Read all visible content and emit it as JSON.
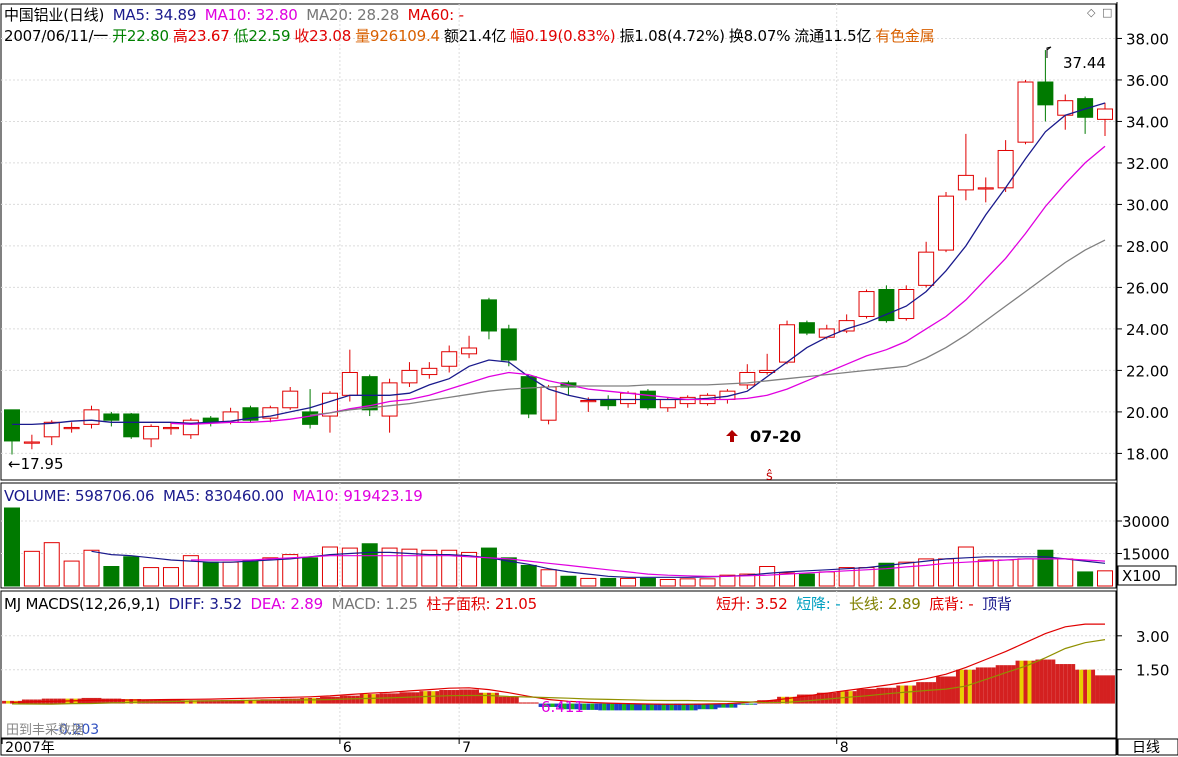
{
  "window": {
    "title": "中国铝业(日线)",
    "period_button": "日线",
    "watermark": "田到丰采数据",
    "icons": [
      "restore-icon",
      "close-icon"
    ]
  },
  "header": {
    "ma5": "MA5: 34.89",
    "ma10": "MA10: 32.80",
    "ma20": "MA20: 28.28",
    "ma60": "MA60: -",
    "date": "2007/06/11/一",
    "open": "开22.80",
    "high": "高23.67",
    "low": "低22.59",
    "close": "收23.08",
    "volume": "量926109.4",
    "amount": "额21.4亿",
    "change": "幅0.19(0.83%)",
    "amplitude": "振1.08(4.72%)",
    "turnover": "换8.07%",
    "float": "流通11.5亿",
    "sector": "有色金属"
  },
  "volume_header": {
    "volume": "VOLUME: 598706.06",
    "ma5": "MA5: 830460.00",
    "ma10": "MA10: 919423.19"
  },
  "macd_header": {
    "name": "MJ  MACDS(12,26,9,1)",
    "diff": "DIFF: 3.52",
    "dea": "DEA: 2.89",
    "macd": "MACD: 1.25",
    "area": "柱子面积: 21.05",
    "short_rise": "短升: 3.52",
    "short_fall": "短降: -",
    "long_line": "长线: 2.89",
    "bottom_div": "底背: -",
    "top_div": "顶背"
  },
  "colors": {
    "up": "#e00000",
    "down": "#007a00",
    "ma5": "#1a1a8c",
    "ma10": "#e000e0",
    "ma20": "#808080",
    "grid": "#dcdcdc",
    "axis": "#000000",
    "macd_red": "#d42020",
    "macd_yellow": "#e8d000",
    "macd_blue": "#1e40c8",
    "macd_green": "#18b818"
  },
  "chart_data": {
    "type": "candlestick",
    "price_axis": {
      "ticks": [
        "38.00",
        "36.00",
        "34.00",
        "32.00",
        "30.00",
        "28.00",
        "26.00",
        "24.00",
        "22.00",
        "20.00",
        "18.00"
      ],
      "min": 17.2,
      "max": 38.6
    },
    "volume_axis": {
      "ticks": [
        "30000",
        "15000"
      ],
      "unit": "X100",
      "max": 36000
    },
    "macd_axis": {
      "ticks": [
        "3.00",
        "1.50"
      ],
      "min": -0.55,
      "max": 3.7
    },
    "x_labels": [
      {
        "text": "2007年",
        "index": 0
      },
      {
        "text": "6",
        "index": 17
      },
      {
        "text": "7",
        "index": 23
      },
      {
        "text": "8",
        "index": 42
      }
    ],
    "annotations": {
      "low_label": "←17.95",
      "high_label": "37.44",
      "date_marker": "07-20",
      "macd_min_label": "6.411",
      "macd_low_label": "-0.203",
      "signal_marker": "ŝ"
    },
    "candles": [
      {
        "o": 20.1,
        "c": 18.6,
        "h": 20.1,
        "l": 17.95
      },
      {
        "o": 18.55,
        "c": 18.55,
        "h": 18.9,
        "l": 18.2
      },
      {
        "o": 18.8,
        "c": 19.5,
        "h": 19.6,
        "l": 18.4
      },
      {
        "o": 19.2,
        "c": 19.25,
        "h": 19.5,
        "l": 19.0
      },
      {
        "o": 19.4,
        "c": 20.1,
        "h": 20.3,
        "l": 19.2
      },
      {
        "o": 19.9,
        "c": 19.6,
        "h": 20.0,
        "l": 19.3
      },
      {
        "o": 19.9,
        "c": 18.8,
        "h": 19.95,
        "l": 18.7
      },
      {
        "o": 18.7,
        "c": 19.3,
        "h": 19.4,
        "l": 18.3
      },
      {
        "o": 19.2,
        "c": 19.25,
        "h": 19.5,
        "l": 18.9
      },
      {
        "o": 18.9,
        "c": 19.6,
        "h": 19.7,
        "l": 18.7
      },
      {
        "o": 19.7,
        "c": 19.5,
        "h": 19.8,
        "l": 19.3
      },
      {
        "o": 19.5,
        "c": 20.0,
        "h": 20.2,
        "l": 19.4
      },
      {
        "o": 20.2,
        "c": 19.6,
        "h": 20.3,
        "l": 19.5
      },
      {
        "o": 19.7,
        "c": 20.2,
        "h": 20.3,
        "l": 19.5
      },
      {
        "o": 20.2,
        "c": 21.0,
        "h": 21.2,
        "l": 20.1
      },
      {
        "o": 20.0,
        "c": 19.4,
        "h": 21.1,
        "l": 19.2
      },
      {
        "o": 19.8,
        "c": 20.9,
        "h": 21.0,
        "l": 19.0
      },
      {
        "o": 20.8,
        "c": 21.9,
        "h": 23.0,
        "l": 20.5
      },
      {
        "o": 21.7,
        "c": 20.1,
        "h": 21.8,
        "l": 19.8
      },
      {
        "o": 19.8,
        "c": 21.4,
        "h": 21.6,
        "l": 19.0
      },
      {
        "o": 21.4,
        "c": 22.0,
        "h": 22.4,
        "l": 21.2
      },
      {
        "o": 21.8,
        "c": 22.1,
        "h": 22.4,
        "l": 21.6
      },
      {
        "o": 22.2,
        "c": 22.9,
        "h": 23.2,
        "l": 21.9
      },
      {
        "o": 22.8,
        "c": 23.08,
        "h": 23.67,
        "l": 22.59
      },
      {
        "o": 25.4,
        "c": 23.9,
        "h": 25.5,
        "l": 23.5
      },
      {
        "o": 24.0,
        "c": 22.5,
        "h": 24.2,
        "l": 22.2
      },
      {
        "o": 21.7,
        "c": 19.9,
        "h": 21.8,
        "l": 19.7
      },
      {
        "o": 19.6,
        "c": 21.2,
        "h": 21.3,
        "l": 19.4
      },
      {
        "o": 21.4,
        "c": 21.2,
        "h": 21.5,
        "l": 20.8
      },
      {
        "o": 20.5,
        "c": 20.55,
        "h": 20.7,
        "l": 20.0
      },
      {
        "o": 20.6,
        "c": 20.3,
        "h": 20.8,
        "l": 20.1
      },
      {
        "o": 20.4,
        "c": 20.9,
        "h": 21.0,
        "l": 20.2
      },
      {
        "o": 21.0,
        "c": 20.2,
        "h": 21.1,
        "l": 20.1
      },
      {
        "o": 20.2,
        "c": 20.6,
        "h": 20.7,
        "l": 20.0
      },
      {
        "o": 20.4,
        "c": 20.7,
        "h": 20.8,
        "l": 20.2
      },
      {
        "o": 20.4,
        "c": 20.8,
        "h": 20.9,
        "l": 20.3
      },
      {
        "o": 20.6,
        "c": 21.0,
        "h": 21.1,
        "l": 20.4
      },
      {
        "o": 21.3,
        "c": 21.9,
        "h": 22.3,
        "l": 21.1
      },
      {
        "o": 21.9,
        "c": 22.0,
        "h": 22.8,
        "l": 21.8
      },
      {
        "o": 22.4,
        "c": 24.2,
        "h": 24.4,
        "l": 22.3
      },
      {
        "o": 24.3,
        "c": 23.8,
        "h": 24.4,
        "l": 23.7
      },
      {
        "o": 23.6,
        "c": 24.0,
        "h": 24.2,
        "l": 23.5
      },
      {
        "o": 23.9,
        "c": 24.4,
        "h": 24.7,
        "l": 23.8
      },
      {
        "o": 24.6,
        "c": 25.8,
        "h": 25.9,
        "l": 24.5
      },
      {
        "o": 25.9,
        "c": 24.4,
        "h": 26.1,
        "l": 24.3
      },
      {
        "o": 24.5,
        "c": 25.9,
        "h": 26.1,
        "l": 24.4
      },
      {
        "o": 26.1,
        "c": 27.7,
        "h": 28.2,
        "l": 26.0
      },
      {
        "o": 27.8,
        "c": 30.4,
        "h": 30.6,
        "l": 27.7
      },
      {
        "o": 30.7,
        "c": 31.4,
        "h": 33.4,
        "l": 30.2
      },
      {
        "o": 30.8,
        "c": 30.8,
        "h": 31.3,
        "l": 30.1
      },
      {
        "o": 30.8,
        "c": 32.6,
        "h": 33.1,
        "l": 30.6
      },
      {
        "o": 33.0,
        "c": 35.9,
        "h": 36.0,
        "l": 32.9
      },
      {
        "o": 35.9,
        "c": 34.8,
        "h": 37.44,
        "l": 34.0
      },
      {
        "o": 34.3,
        "c": 35.0,
        "h": 35.3,
        "l": 33.6
      },
      {
        "o": 35.1,
        "c": 34.2,
        "h": 35.2,
        "l": 33.4
      },
      {
        "o": 34.1,
        "c": 34.6,
        "h": 34.9,
        "l": 33.3
      }
    ],
    "series": [
      {
        "name": "MA5",
        "values": [
          19.4,
          19.4,
          19.45,
          19.55,
          19.6,
          19.5,
          19.5,
          19.5,
          19.5,
          19.45,
          19.5,
          19.55,
          19.7,
          19.8,
          20.0,
          20.2,
          20.5,
          20.8,
          20.8,
          20.8,
          20.9,
          21.3,
          21.6,
          22.2,
          22.5,
          22.4,
          21.7,
          21.1,
          20.8,
          20.6,
          20.6,
          20.6,
          20.6,
          20.6,
          20.6,
          20.65,
          20.75,
          21.0,
          21.7,
          22.4,
          23.1,
          23.6,
          24.0,
          24.3,
          24.7,
          25.1,
          25.8,
          26.8,
          28.0,
          29.5,
          30.8,
          32.2,
          33.5,
          34.3,
          34.6,
          34.89
        ]
      },
      {
        "name": "MA10",
        "values": [
          null,
          null,
          null,
          null,
          null,
          null,
          null,
          null,
          19.45,
          19.4,
          19.45,
          19.5,
          19.5,
          19.55,
          19.65,
          19.8,
          19.95,
          20.15,
          20.3,
          20.5,
          20.6,
          20.8,
          21.1,
          21.4,
          21.7,
          21.9,
          21.8,
          21.5,
          21.3,
          21.1,
          21.0,
          20.9,
          20.8,
          20.7,
          20.6,
          20.6,
          20.6,
          20.65,
          20.8,
          21.1,
          21.5,
          21.9,
          22.3,
          22.7,
          23.0,
          23.4,
          24.0,
          24.6,
          25.4,
          26.4,
          27.4,
          28.6,
          29.9,
          31.0,
          32.0,
          32.8
        ]
      },
      {
        "name": "MA20",
        "values": [
          null,
          null,
          null,
          null,
          null,
          null,
          null,
          null,
          null,
          null,
          null,
          null,
          null,
          null,
          null,
          19.85,
          19.95,
          20.1,
          20.2,
          20.3,
          20.4,
          20.55,
          20.7,
          20.85,
          21.0,
          21.1,
          21.15,
          21.2,
          21.25,
          21.25,
          21.25,
          21.25,
          21.3,
          21.3,
          21.3,
          21.3,
          21.35,
          21.4,
          21.5,
          21.6,
          21.7,
          21.8,
          21.9,
          22.0,
          22.1,
          22.2,
          22.6,
          23.1,
          23.7,
          24.4,
          25.1,
          25.8,
          26.5,
          27.2,
          27.8,
          28.28
        ]
      }
    ],
    "volume": [
      36000,
      16000,
      20000,
      11500,
      16500,
      9000,
      13500,
      8500,
      8500,
      14000,
      11000,
      11000,
      11500,
      13000,
      14500,
      13000,
      18000,
      17500,
      19500,
      17500,
      17000,
      16500,
      16500,
      15500,
      17500,
      13000,
      9500,
      7500,
      4500,
      3500,
      3500,
      3500,
      3500,
      3000,
      3300,
      3300,
      5000,
      5500,
      9000,
      6000,
      5500,
      6500,
      8500,
      8500,
      10500,
      11000,
      12500,
      12500,
      18000,
      12000,
      12000,
      12500,
      16500,
      12500,
      6500,
      7000
    ],
    "volume_ma5": [
      null,
      null,
      null,
      null,
      16000,
      14500,
      14000,
      13000,
      12000,
      11500,
      11000,
      11000,
      11500,
      12000,
      12500,
      13500,
      14500,
      15000,
      15500,
      15500,
      15000,
      14500,
      14500,
      14000,
      13000,
      11500,
      10000,
      8000,
      6500,
      5500,
      4500,
      4000,
      4000,
      4000,
      4000,
      4200,
      4500,
      5000,
      5800,
      6500,
      7000,
      7500,
      8000,
      8500,
      9500,
      10500,
      11500,
      12500,
      13000,
      13500,
      13500,
      13500,
      13500,
      12500,
      11500,
      10500
    ],
    "volume_ma10": [
      null,
      null,
      null,
      null,
      null,
      null,
      null,
      null,
      null,
      12000,
      12000,
      12000,
      12000,
      12500,
      13000,
      13500,
      14000,
      14000,
      14000,
      14000,
      14000,
      14000,
      14000,
      13500,
      13000,
      12500,
      11500,
      10500,
      9500,
      8500,
      7500,
      6500,
      5500,
      5000,
      4700,
      4500,
      4500,
      4700,
      5000,
      5500,
      6000,
      6500,
      7000,
      7500,
      8000,
      8800,
      9500,
      10500,
      11000,
      11500,
      12000,
      12500,
      12500,
      12500,
      12000,
      11500
    ],
    "macd_hist": [
      0.12,
      0.18,
      0.22,
      0.22,
      0.25,
      0.22,
      0.2,
      0.18,
      0.16,
      0.15,
      0.15,
      0.16,
      0.17,
      0.19,
      0.22,
      0.25,
      0.3,
      0.35,
      0.42,
      0.45,
      0.5,
      0.55,
      0.6,
      0.62,
      0.48,
      0.3,
      0.05,
      -0.15,
      -0.25,
      -0.28,
      -0.3,
      -0.3,
      -0.3,
      -0.3,
      -0.3,
      -0.25,
      -0.18,
      -0.05,
      0.15,
      0.3,
      0.4,
      0.48,
      0.55,
      0.65,
      0.7,
      0.8,
      0.95,
      1.2,
      1.5,
      1.6,
      1.7,
      1.9,
      1.95,
      1.75,
      1.5,
      1.25
    ],
    "macd_diff": [
      0.05,
      0.08,
      0.1,
      0.12,
      0.14,
      0.15,
      0.16,
      0.17,
      0.18,
      0.19,
      0.2,
      0.22,
      0.24,
      0.26,
      0.28,
      0.3,
      0.34,
      0.4,
      0.46,
      0.5,
      0.56,
      0.62,
      0.68,
      0.7,
      0.62,
      0.48,
      0.32,
      0.18,
      0.1,
      0.05,
      0.02,
      0.0,
      -0.02,
      -0.03,
      -0.03,
      -0.02,
      0.0,
      0.05,
      0.12,
      0.22,
      0.34,
      0.46,
      0.58,
      0.7,
      0.82,
      0.95,
      1.1,
      1.3,
      1.6,
      1.95,
      2.3,
      2.7,
      3.1,
      3.4,
      3.52,
      3.52
    ]
  }
}
